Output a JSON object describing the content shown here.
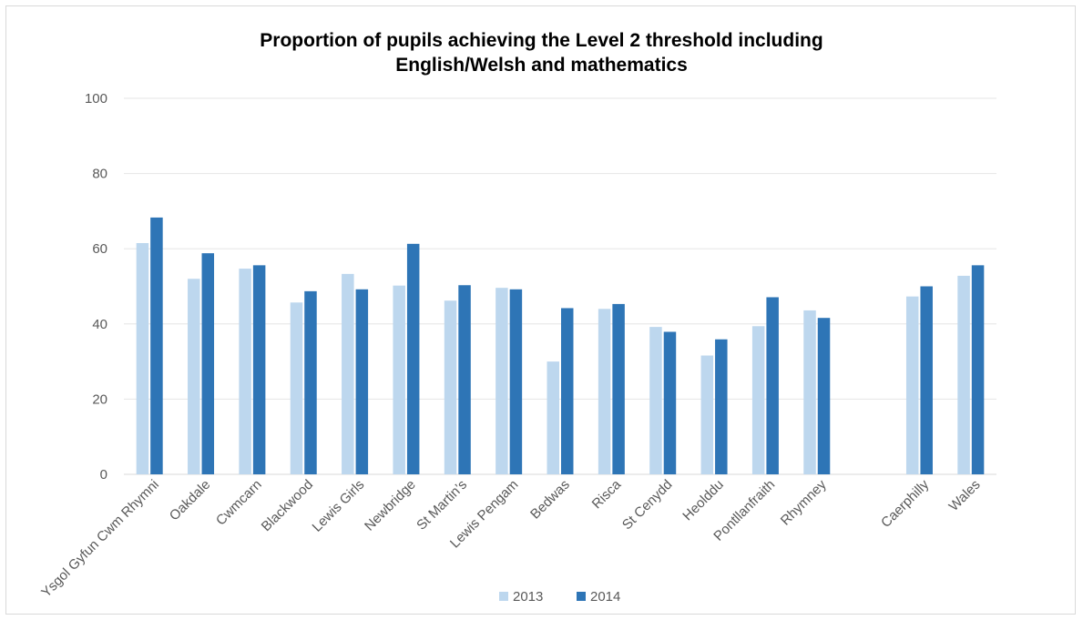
{
  "chart_data": {
    "type": "bar",
    "title_line1": "Proportion of pupils achieving the Level 2 threshold including",
    "title_line2": "English/Welsh and mathematics",
    "xlabel": "",
    "ylabel": "",
    "ylim": [
      0,
      100
    ],
    "yticks": [
      "0",
      "20",
      "40",
      "60",
      "80",
      "100"
    ],
    "grid": true,
    "legend_position": "bottom",
    "categories": [
      "Ysgol Gyfun Cwm Rhymni",
      "Oakdale",
      "Cwmcarn",
      "Blackwood",
      "Lewis Girls",
      "Newbridge",
      "St Martin’s",
      "Lewis Pengam",
      "Bedwas",
      "Risca",
      "St Cenydd",
      "Heolddu",
      "Pontllanfraith",
      "Rhymney",
      "",
      "Caerphilly",
      "Wales"
    ],
    "series": [
      {
        "name": "2013",
        "color": "#bdd7ee",
        "values": [
          61.5,
          52,
          54.7,
          45.7,
          53.3,
          50.2,
          46.2,
          49.6,
          30,
          44,
          39.2,
          31.6,
          39.4,
          43.6,
          null,
          47.3,
          52.8
        ]
      },
      {
        "name": "2014",
        "color": "#2e75b6",
        "values": [
          68.3,
          58.8,
          55.6,
          48.7,
          49.2,
          61.3,
          50.3,
          49.2,
          44.2,
          45.3,
          37.9,
          35.9,
          47.1,
          41.6,
          null,
          50,
          55.6
        ]
      }
    ]
  }
}
